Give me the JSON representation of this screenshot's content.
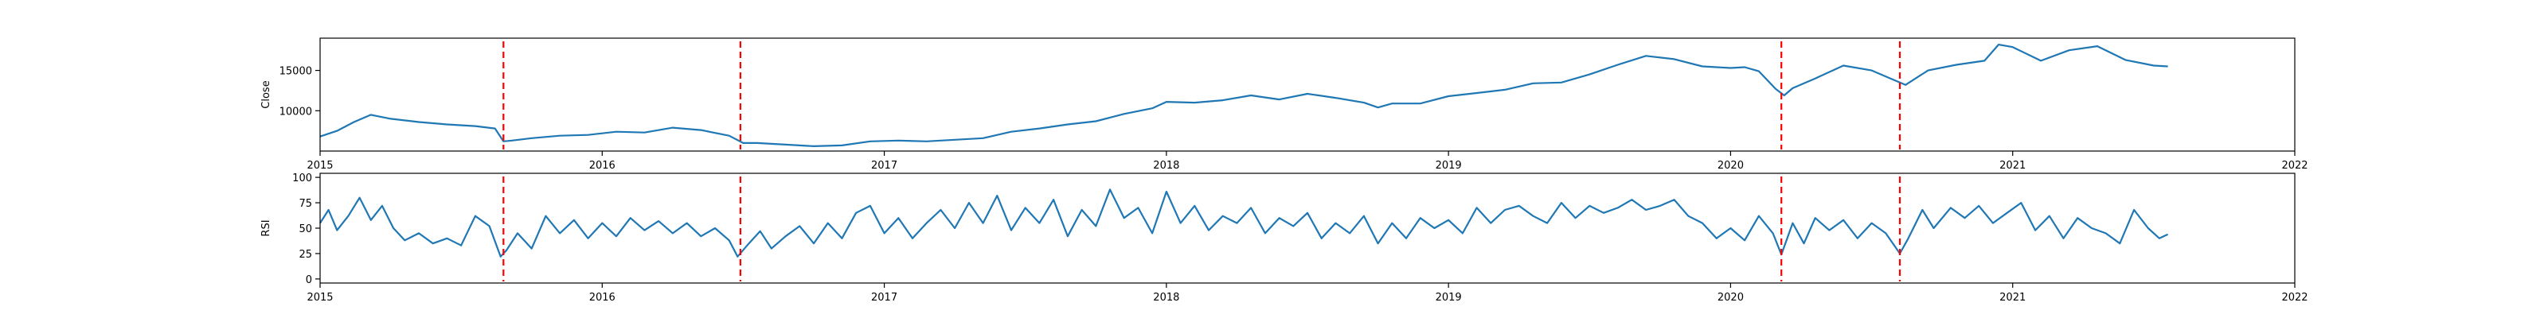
{
  "chart_data": [
    {
      "type": "line",
      "title": "",
      "xlabel": "",
      "ylabel": "Close",
      "xlim": [
        2015.0,
        2022.0
      ],
      "ylim": [
        5000,
        19000
      ],
      "x_ticks": [
        {
          "value": 2015,
          "label": "2015"
        },
        {
          "value": 2016,
          "label": "2016"
        },
        {
          "value": 2017,
          "label": "2017"
        },
        {
          "value": 2018,
          "label": "2018"
        },
        {
          "value": 2019,
          "label": "2019"
        },
        {
          "value": 2020,
          "label": "2020"
        },
        {
          "value": 2021,
          "label": "2021"
        },
        {
          "value": 2022,
          "label": "2022"
        }
      ],
      "y_ticks": [
        {
          "value": 10000,
          "label": "10000"
        },
        {
          "value": 15000,
          "label": "15000"
        }
      ],
      "grid": false,
      "series": [
        {
          "name": "",
          "color": "#1f77b4",
          "x": [
            2015.0,
            2015.06,
            2015.12,
            2015.18,
            2015.25,
            2015.35,
            2015.45,
            2015.55,
            2015.62,
            2015.65,
            2015.68,
            2015.75,
            2015.85,
            2015.95,
            2016.05,
            2016.15,
            2016.25,
            2016.35,
            2016.45,
            2016.5,
            2016.55,
            2016.65,
            2016.75,
            2016.85,
            2016.95,
            2017.05,
            2017.15,
            2017.25,
            2017.35,
            2017.45,
            2017.55,
            2017.65,
            2017.75,
            2017.85,
            2017.95,
            2018.0,
            2018.1,
            2018.2,
            2018.3,
            2018.4,
            2018.5,
            2018.6,
            2018.7,
            2018.75,
            2018.8,
            2018.9,
            2019.0,
            2019.1,
            2019.2,
            2019.3,
            2019.4,
            2019.5,
            2019.6,
            2019.7,
            2019.8,
            2019.9,
            2020.0,
            2020.05,
            2020.1,
            2020.16,
            2020.19,
            2020.22,
            2020.3,
            2020.4,
            2020.5,
            2020.58,
            2020.62,
            2020.7,
            2020.8,
            2020.9,
            2020.95,
            2021.0,
            2021.1,
            2021.2,
            2021.3,
            2021.4,
            2021.5,
            2021.55
          ],
          "y": [
            6800,
            7500,
            8600,
            9500,
            9000,
            8600,
            8300,
            8100,
            7800,
            6200,
            6300,
            6600,
            6900,
            7000,
            7400,
            7300,
            7900,
            7600,
            6900,
            6000,
            6000,
            5800,
            5600,
            5700,
            6200,
            6300,
            6200,
            6400,
            6600,
            7400,
            7800,
            8300,
            8700,
            9600,
            10300,
            11100,
            11000,
            11300,
            11900,
            11400,
            12100,
            11600,
            11000,
            10400,
            10900,
            10900,
            11800,
            12200,
            12600,
            13400,
            13500,
            14500,
            15700,
            16800,
            16400,
            15500,
            15300,
            15400,
            14900,
            12700,
            11900,
            12800,
            14000,
            15600,
            15000,
            13800,
            13200,
            15000,
            15700,
            16200,
            18200,
            17900,
            16200,
            17500,
            18000,
            16300,
            15600,
            15500
          ]
        }
      ],
      "vlines": [
        2015.65,
        2016.49,
        2020.18,
        2020.6
      ],
      "vline_color": "#ff0000"
    },
    {
      "type": "line",
      "title": "",
      "xlabel": "",
      "ylabel": "RSI",
      "xlim": [
        2015.0,
        2022.0
      ],
      "ylim": [
        -4,
        104
      ],
      "x_ticks": [
        {
          "value": 2015,
          "label": "2015"
        },
        {
          "value": 2016,
          "label": "2016"
        },
        {
          "value": 2017,
          "label": "2017"
        },
        {
          "value": 2018,
          "label": "2018"
        },
        {
          "value": 2019,
          "label": "2019"
        },
        {
          "value": 2020,
          "label": "2020"
        },
        {
          "value": 2021,
          "label": "2021"
        },
        {
          "value": 2022,
          "label": "2022"
        }
      ],
      "y_ticks": [
        {
          "value": 0,
          "label": "0"
        },
        {
          "value": 25,
          "label": "25"
        },
        {
          "value": 50,
          "label": "50"
        },
        {
          "value": 75,
          "label": "75"
        },
        {
          "value": 100,
          "label": "100"
        }
      ],
      "grid": false,
      "series": [
        {
          "name": "",
          "color": "#1f77b4",
          "x": [
            2015.0,
            2015.03,
            2015.06,
            2015.1,
            2015.14,
            2015.18,
            2015.22,
            2015.26,
            2015.3,
            2015.35,
            2015.4,
            2015.45,
            2015.5,
            2015.55,
            2015.6,
            2015.64,
            2015.66,
            2015.7,
            2015.75,
            2015.8,
            2015.85,
            2015.9,
            2015.95,
            2016.0,
            2016.05,
            2016.1,
            2016.15,
            2016.2,
            2016.25,
            2016.3,
            2016.35,
            2016.4,
            2016.45,
            2016.48,
            2016.52,
            2016.56,
            2016.6,
            2016.65,
            2016.7,
            2016.75,
            2016.8,
            2016.85,
            2016.9,
            2016.95,
            2017.0,
            2017.05,
            2017.1,
            2017.15,
            2017.2,
            2017.25,
            2017.3,
            2017.35,
            2017.4,
            2017.45,
            2017.5,
            2017.55,
            2017.6,
            2017.65,
            2017.7,
            2017.75,
            2017.8,
            2017.85,
            2017.9,
            2017.95,
            2018.0,
            2018.05,
            2018.1,
            2018.15,
            2018.2,
            2018.25,
            2018.3,
            2018.35,
            2018.4,
            2018.45,
            2018.5,
            2018.55,
            2018.6,
            2018.65,
            2018.7,
            2018.75,
            2018.8,
            2018.85,
            2018.9,
            2018.95,
            2019.0,
            2019.05,
            2019.1,
            2019.15,
            2019.2,
            2019.25,
            2019.3,
            2019.35,
            2019.4,
            2019.45,
            2019.5,
            2019.55,
            2019.6,
            2019.65,
            2019.7,
            2019.75,
            2019.8,
            2019.85,
            2019.9,
            2019.95,
            2020.0,
            2020.05,
            2020.1,
            2020.15,
            2020.18,
            2020.22,
            2020.26,
            2020.3,
            2020.35,
            2020.4,
            2020.45,
            2020.5,
            2020.55,
            2020.6,
            2020.63,
            2020.68,
            2020.72,
            2020.78,
            2020.83,
            2020.88,
            2020.93,
            2020.98,
            2021.03,
            2021.08,
            2021.13,
            2021.18,
            2021.23,
            2021.28,
            2021.33,
            2021.38,
            2021.43,
            2021.48,
            2021.52,
            2021.55
          ],
          "y": [
            55,
            68,
            48,
            62,
            80,
            58,
            72,
            50,
            38,
            45,
            35,
            40,
            33,
            62,
            52,
            22,
            28,
            45,
            30,
            62,
            45,
            58,
            40,
            55,
            42,
            60,
            48,
            57,
            45,
            55,
            42,
            50,
            38,
            22,
            35,
            47,
            30,
            42,
            52,
            35,
            55,
            40,
            65,
            72,
            45,
            60,
            40,
            55,
            68,
            50,
            75,
            55,
            82,
            48,
            70,
            55,
            78,
            42,
            68,
            52,
            88,
            60,
            70,
            45,
            86,
            55,
            72,
            48,
            62,
            55,
            70,
            45,
            60,
            52,
            65,
            40,
            55,
            45,
            62,
            35,
            55,
            40,
            60,
            50,
            58,
            45,
            70,
            55,
            68,
            72,
            62,
            55,
            75,
            60,
            72,
            65,
            70,
            78,
            68,
            72,
            78,
            62,
            55,
            40,
            50,
            38,
            62,
            45,
            24,
            55,
            35,
            60,
            48,
            58,
            40,
            55,
            45,
            25,
            40,
            68,
            50,
            70,
            60,
            72,
            55,
            65,
            75,
            48,
            62,
            40,
            60,
            50,
            45,
            35,
            68,
            50,
            40,
            44
          ]
        }
      ],
      "vlines": [
        2015.65,
        2016.49,
        2020.18,
        2020.6
      ],
      "vline_color": "#ff0000"
    }
  ]
}
